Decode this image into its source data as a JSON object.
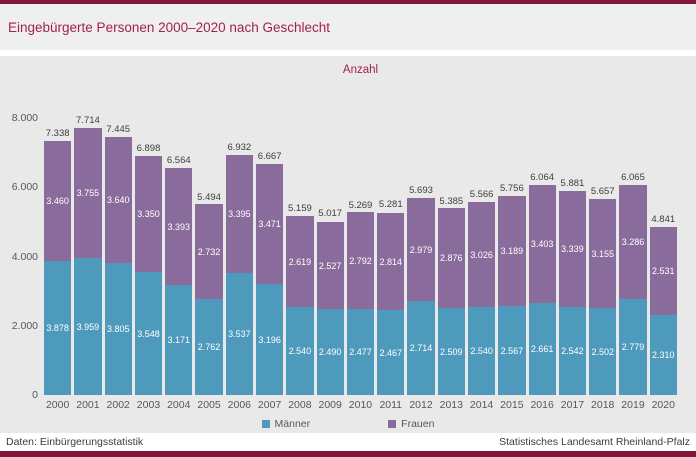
{
  "header": {
    "title": "Eingebürgerte Personen 2000–2020 nach Geschlecht"
  },
  "chart_data": {
    "type": "bar",
    "stacked": true,
    "axis_title": "Anzahl",
    "categories": [
      "2000",
      "2001",
      "2002",
      "2003",
      "2004",
      "2005",
      "2006",
      "2007",
      "2008",
      "2009",
      "2010",
      "2011",
      "2012",
      "2013",
      "2014",
      "2015",
      "2016",
      "2017",
      "2018",
      "2019",
      "2020"
    ],
    "series": [
      {
        "name": "Männer",
        "color": "#4e9abc",
        "values": [
          3878,
          3959,
          3805,
          3548,
          3171,
          2762,
          3537,
          3196,
          2540,
          2490,
          2477,
          2467,
          2714,
          2509,
          2540,
          2567,
          2661,
          2542,
          2502,
          2779,
          2310
        ]
      },
      {
        "name": "Frauen",
        "color": "#8a6c9c",
        "values": [
          3460,
          3755,
          3640,
          3350,
          3393,
          2732,
          3395,
          3471,
          2619,
          2527,
          2792,
          2814,
          2979,
          2876,
          3026,
          3189,
          3403,
          3339,
          3155,
          3286,
          2531
        ]
      }
    ],
    "totals": [
      7338,
      7714,
      7445,
      6898,
      6564,
      5494,
      6932,
      6667,
      5159,
      5017,
      5269,
      5281,
      5693,
      5385,
      5566,
      5756,
      6064,
      5881,
      5657,
      6065,
      4841
    ],
    "y_ticks": [
      "8.000",
      "6.000",
      "4.000",
      "2.000",
      "0"
    ],
    "ylim": [
      0,
      8000
    ],
    "grid": false,
    "legend_position": "bottom"
  },
  "footer": {
    "left": "Daten:  Einbürgerungsstatistik",
    "right": "Statistisches Landesamt  Rheinland-Pfalz"
  },
  "colors": {
    "brand_bar": "#82173a",
    "title_text": "#a22344",
    "maenner": "#4e9abc",
    "frauen": "#8a6c9c",
    "panel_bg": "#e9e9ea"
  }
}
